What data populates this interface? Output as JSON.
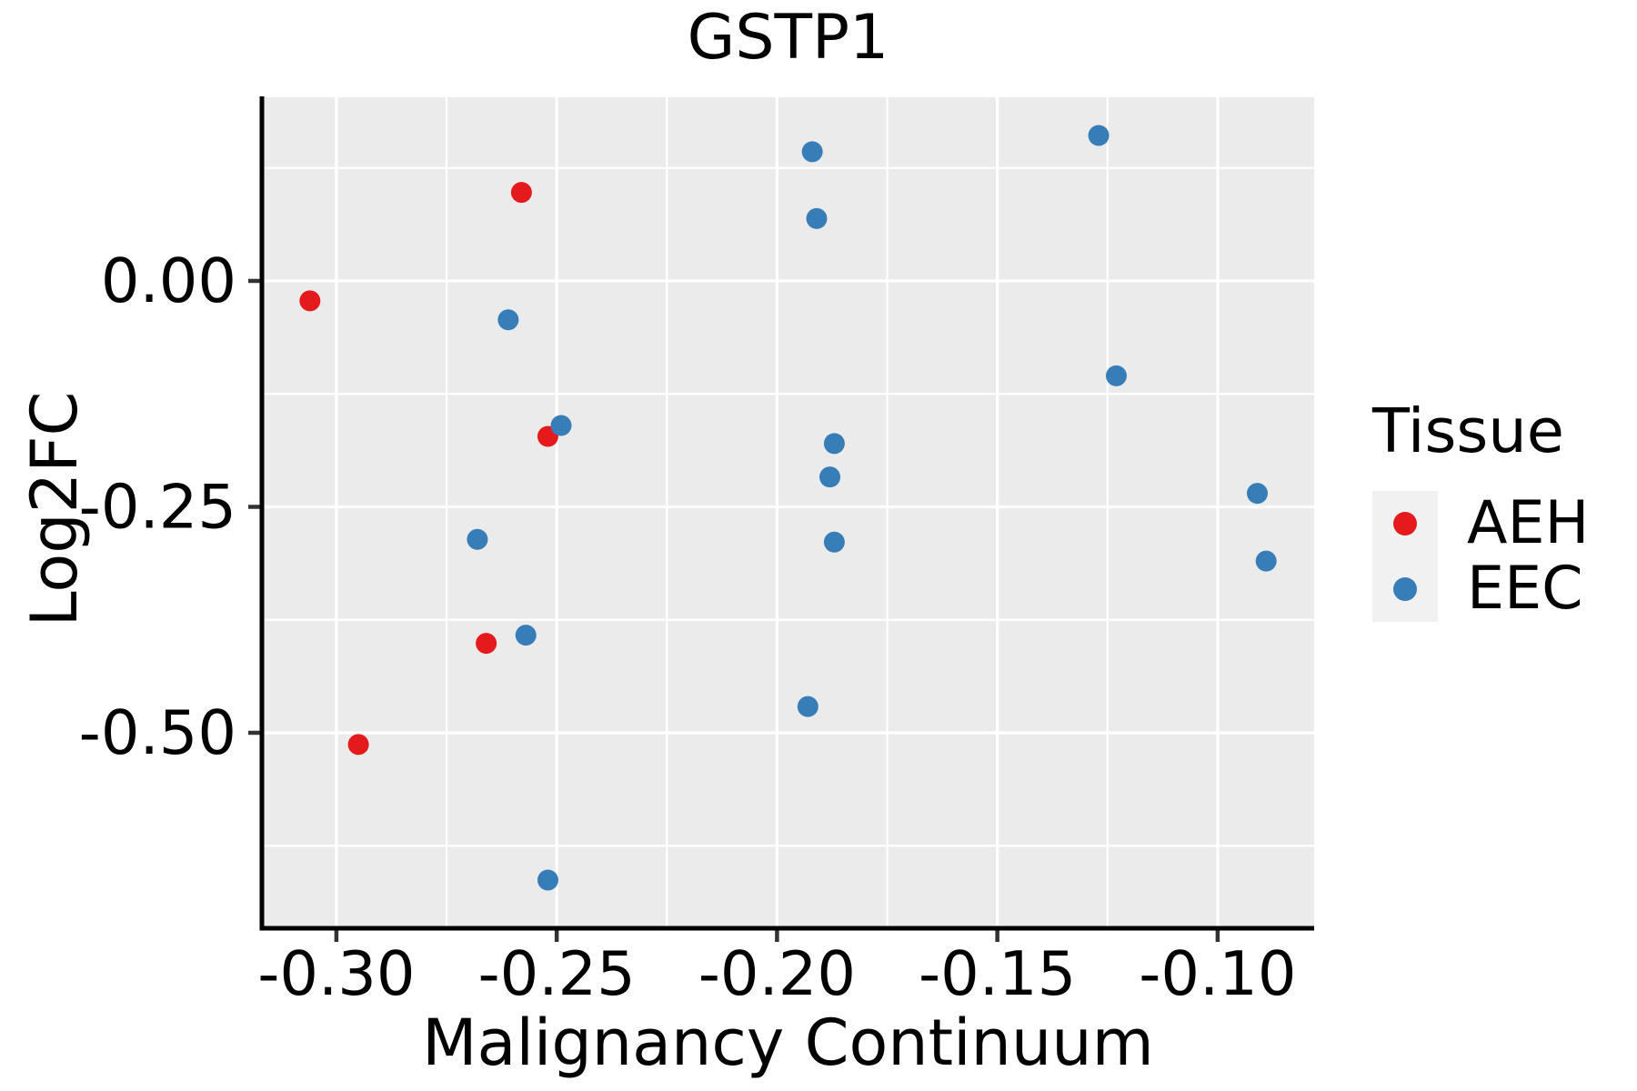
{
  "title": "GSTP1",
  "legend": {
    "title": "Tissue",
    "items": [
      {
        "label": "AEH",
        "color": "#E41A1C"
      },
      {
        "label": "EEC",
        "color": "#377EB8"
      }
    ]
  },
  "style": {
    "panel_bg": "#EBEBEB",
    "grid_color": "#FFFFFF",
    "legend_key_bg": "#F1F1F1",
    "axis_line_color": "#000000",
    "tick_mark_color": "#333333",
    "text_color": "#000000"
  },
  "chart_data": {
    "type": "scatter",
    "title": "GSTP1",
    "xlabel": "Malignancy Continuum",
    "ylabel": "Log2FC",
    "xlim": [
      -0.3169,
      -0.0781
    ],
    "ylim": [
      -0.7163,
      0.2032
    ],
    "x_ticks": [
      -0.3,
      -0.25,
      -0.2,
      -0.15,
      -0.1
    ],
    "x_tick_labels": [
      "-0.30",
      "-0.25",
      "-0.20",
      "-0.15",
      "-0.10"
    ],
    "x_minor_gridlines": [
      -0.275,
      -0.225,
      -0.175,
      -0.125
    ],
    "y_ticks": [
      0.0,
      -0.25,
      -0.5
    ],
    "y_tick_labels": [
      "0.00",
      "-0.25",
      "-0.50"
    ],
    "y_minor_gridlines": [
      0.125,
      -0.125,
      -0.375,
      -0.625
    ],
    "grid": "major+minor white on gray panel",
    "legend_position": "right",
    "point_radius_px": 11.5,
    "series": [
      {
        "name": "AEH",
        "color": "#E41A1C",
        "points": [
          [
            -0.306,
            -0.022
          ],
          [
            -0.295,
            -0.513
          ],
          [
            -0.266,
            -0.401
          ],
          [
            -0.258,
            0.098
          ],
          [
            -0.252,
            -0.172
          ]
        ]
      },
      {
        "name": "EEC",
        "color": "#377EB8",
        "points": [
          [
            -0.268,
            -0.286
          ],
          [
            -0.261,
            -0.043
          ],
          [
            -0.257,
            -0.392
          ],
          [
            -0.252,
            -0.663
          ],
          [
            -0.249,
            -0.16
          ],
          [
            -0.193,
            -0.471
          ],
          [
            -0.192,
            0.143
          ],
          [
            -0.191,
            0.069
          ],
          [
            -0.188,
            -0.217
          ],
          [
            -0.187,
            -0.18
          ],
          [
            -0.187,
            -0.289
          ],
          [
            -0.127,
            0.161
          ],
          [
            -0.123,
            -0.105
          ],
          [
            -0.091,
            -0.235
          ],
          [
            -0.089,
            -0.31
          ]
        ]
      }
    ]
  }
}
